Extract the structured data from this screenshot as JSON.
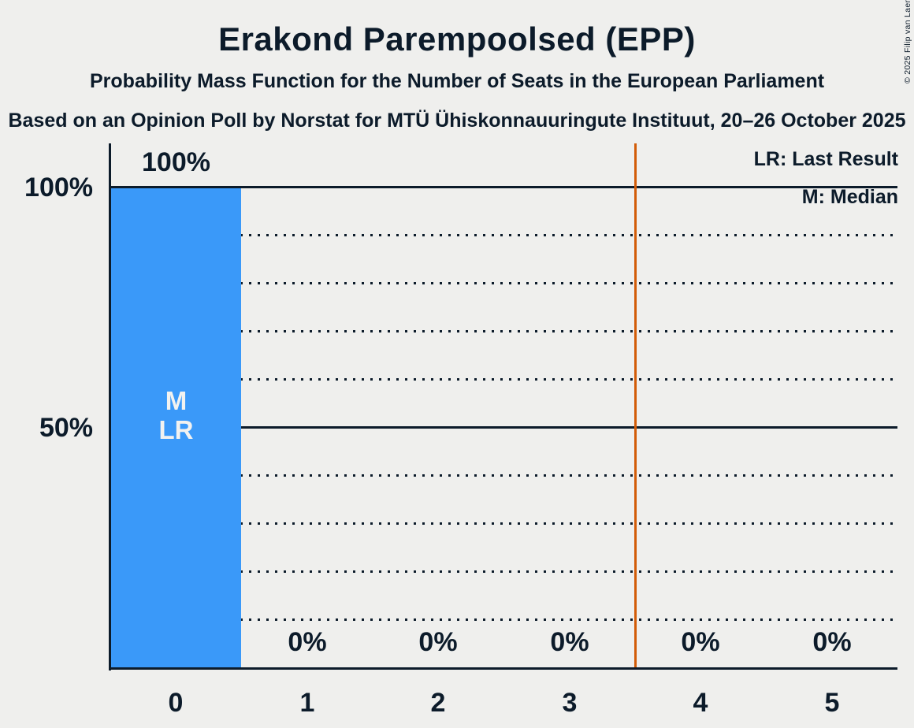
{
  "chart_data": {
    "type": "bar",
    "title": "Erakond Parempoolsed (EPP)",
    "subtitle": "Probability Mass Function for the Number of Seats in the European Parliament",
    "source_line": "Based on an Opinion Poll by Norstat for MTÜ Ühiskonnauuringute Instituut, 20–26 October 2025",
    "copyright": "© 2025 Filip van Laenen",
    "categories": [
      "0",
      "1",
      "2",
      "3",
      "4",
      "5"
    ],
    "values": [
      100,
      0,
      0,
      0,
      0,
      0
    ],
    "value_labels": [
      "100%",
      "0%",
      "0%",
      "0%",
      "0%",
      "0%"
    ],
    "ylim": [
      0,
      100
    ],
    "y_ticks": [
      "100%",
      "50%"
    ],
    "grid": "horizontal lines every 10%, dotted; solid at 100% and 50%",
    "legend": [
      "LR: Last Result",
      "M: Median"
    ],
    "legend_position": "top-right",
    "annotations": {
      "median_label": "M",
      "last_result_label": "LR",
      "median_seats": 0,
      "last_result_seats": 0,
      "last_result_line_x": 3.5
    },
    "colors": {
      "bar": "#3a99f9",
      "text": "#0c1b2a",
      "bar_label_text": "#f2f2f0",
      "last_result_line": "#d25c08",
      "background": "#efefed"
    }
  }
}
